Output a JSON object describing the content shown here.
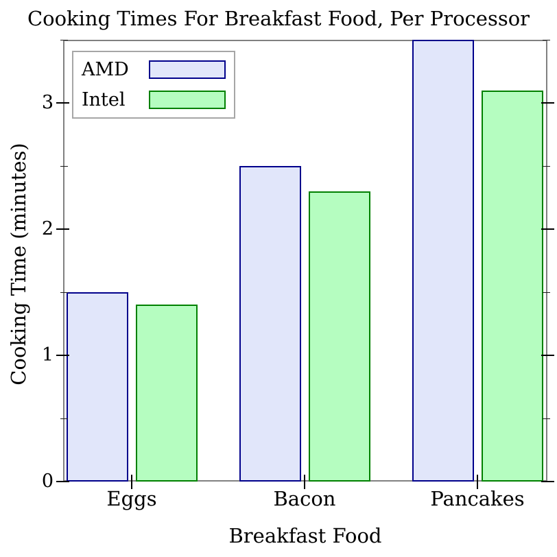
{
  "chart_data": {
    "type": "bar",
    "title": "Cooking Times For Breakfast Food, Per Processor",
    "xlabel": "Breakfast Food",
    "ylabel": "Cooking Time (minutes)",
    "categories": [
      "Eggs",
      "Bacon",
      "Pancakes"
    ],
    "series": [
      {
        "name": "AMD",
        "values": [
          1.5,
          2.5,
          3.5
        ],
        "fill": "#e1e6fa",
        "edge": "#00008b"
      },
      {
        "name": "Intel",
        "values": [
          1.4,
          2.3,
          3.1
        ],
        "fill": "#b5fdc0",
        "edge": "#008000"
      }
    ],
    "ylim": [
      0,
      3.5
    ],
    "yticks": [
      0,
      1,
      2,
      3
    ],
    "yticks_minor": [
      0.5,
      1.5,
      2.5,
      3.5
    ],
    "grid": false,
    "legend": {
      "position": "upper left",
      "entries": [
        "AMD",
        "Intel"
      ],
      "marker_side": "right"
    },
    "colors": {
      "background": "#ffffff",
      "spine": "#808080",
      "tick": "#000000",
      "text": "#000000",
      "legend_border": "#a6a6a6"
    }
  }
}
